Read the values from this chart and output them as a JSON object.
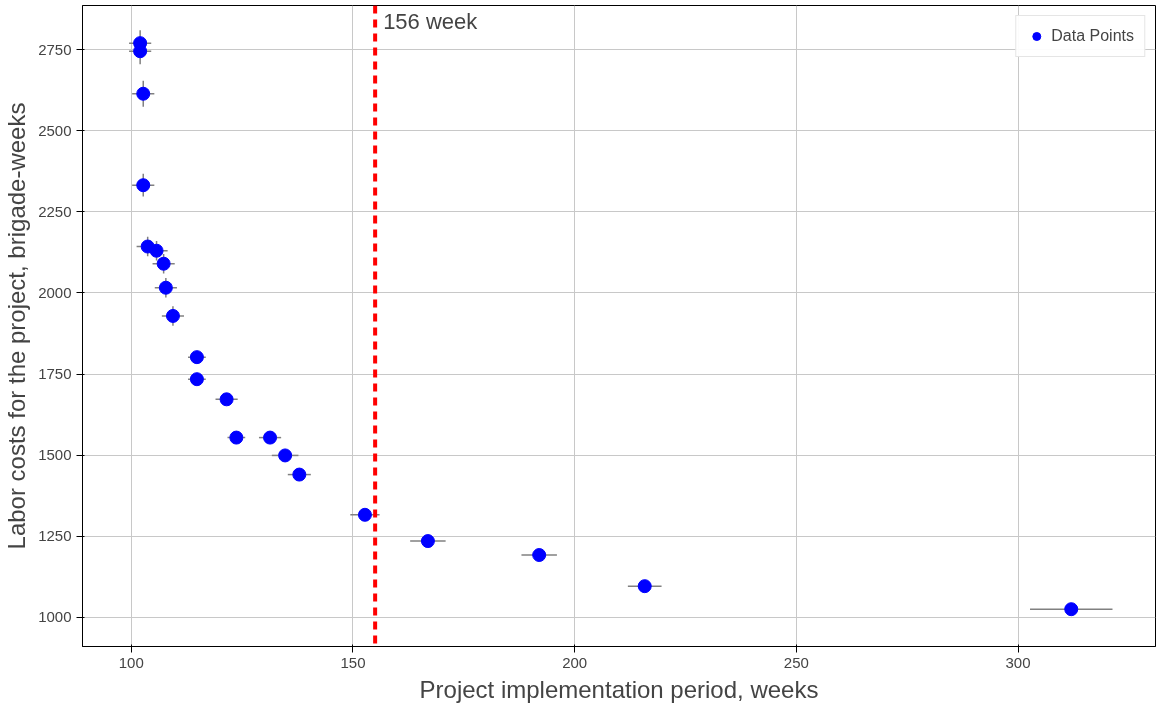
{
  "chart_data": {
    "type": "scatter",
    "xlabel": "Project implementation period, weeks",
    "ylabel": "Labor costs for the project, brigade-weeks",
    "x": [
      102,
      102,
      102.7,
      102.7,
      103.7,
      105.7,
      107.3,
      107.8,
      109.4,
      114.8,
      114.8,
      121.5,
      123.7,
      131.3,
      134.7,
      137.9,
      152.7,
      166.9,
      192,
      215.8,
      312
    ],
    "series": [
      {
        "name": "Data Points",
        "color": "#0000ff",
        "values": [
          2770,
          2745,
          2614,
          2332,
          2143,
          2130,
          2090,
          2016,
          1929,
          1802,
          1734,
          1672,
          1554,
          1554,
          1499,
          1440,
          1316,
          1235,
          1192,
          1096,
          1025
        ],
        "errors": [
          40,
          40,
          40,
          35,
          30,
          30,
          30,
          30,
          30,
          null,
          null,
          null,
          null,
          null,
          null,
          null,
          null,
          null,
          null,
          null,
          null
        ],
        "xerrors": [
          2.5,
          2.5,
          2.5,
          2.5,
          2.5,
          2.5,
          2.5,
          2.5,
          2.5,
          2,
          2,
          2.5,
          2,
          2.5,
          3,
          2.6,
          3.3,
          4,
          4,
          3.8,
          9.3
        ]
      }
    ],
    "xlim": [
      89,
      331
    ],
    "ylim": [
      910,
      2886
    ],
    "xticks": [
      100,
      150,
      200,
      250,
      300
    ],
    "yticks": [
      1000,
      1250,
      1500,
      1750,
      2000,
      2250,
      2500,
      2750
    ],
    "ref_lines": [
      {
        "axis": "x",
        "value": 155,
        "label": "156 week",
        "color": "#ff0000",
        "line_style": "dashed"
      }
    ],
    "grid": true,
    "legend": "top right",
    "marker": "circle"
  }
}
